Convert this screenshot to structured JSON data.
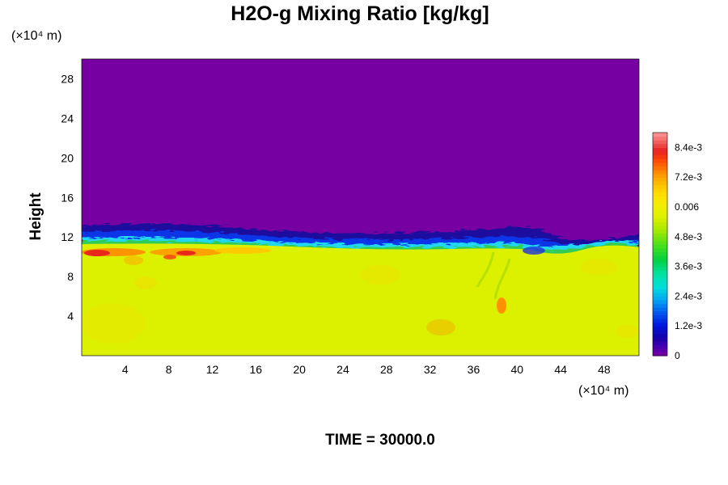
{
  "chart_data": {
    "type": "heatmap",
    "title": "H2O-g Mixing Ratio [kg/kg]",
    "ylabel": "Height",
    "y_unit_label": "(×10⁴ m)",
    "x_unit_label": "(×10⁴ m)",
    "xlim": [
      0,
      51.2
    ],
    "ylim": [
      0,
      30
    ],
    "x_ticks": [
      "4",
      "8",
      "12",
      "16",
      "20",
      "24",
      "28",
      "32",
      "36",
      "40",
      "44",
      "48"
    ],
    "y_ticks": [
      "4",
      "8",
      "12",
      "16",
      "20",
      "24",
      "28"
    ],
    "field_description": {
      "lower_layer_value": 0.0062,
      "upper_layer_value": 0,
      "interface_height": 12
    },
    "colorbar": {
      "min": 0,
      "max": 0.009,
      "tick_labels": [
        "0",
        "1.2e-3",
        "2.4e-3",
        "3.6e-3",
        "4.8e-3",
        "0.006",
        "7.2e-3",
        "8.4e-3"
      ],
      "tick_values": [
        0,
        0.0012,
        0.0024,
        0.0036,
        0.0048,
        0.006,
        0.0072,
        0.0084
      ]
    },
    "grid": false,
    "legend": "colorbar-right"
  },
  "footer": {
    "time_label": "TIME = 30000.0"
  }
}
